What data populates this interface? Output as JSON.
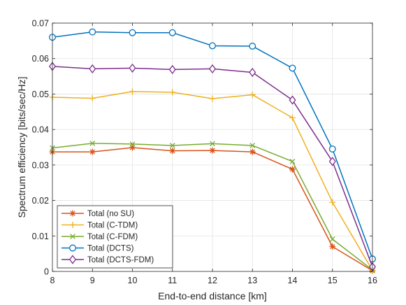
{
  "chart_data": {
    "type": "line",
    "title": "",
    "xlabel": "End-to-end distance [km]",
    "ylabel": "Spectrum efficiency [bits/sec/Hz]",
    "xlim": [
      8,
      16
    ],
    "ylim": [
      0,
      0.07
    ],
    "x": [
      8,
      9,
      10,
      11,
      12,
      13,
      14,
      15,
      16
    ],
    "xticks": [
      "8",
      "9",
      "10",
      "11",
      "12",
      "13",
      "14",
      "15",
      "16"
    ],
    "yticks": [
      "0",
      "0.01",
      "0.02",
      "0.03",
      "0.04",
      "0.05",
      "0.06",
      "0.07"
    ],
    "grid": true,
    "legend_position": "bottom-left",
    "series": [
      {
        "name": "Total (no SU)",
        "color": "#D95319",
        "marker": "asterisk",
        "values": [
          0.0337,
          0.0337,
          0.0349,
          0.034,
          0.0341,
          0.0337,
          0.0288,
          0.007,
          0.0002
        ]
      },
      {
        "name": "Total (C-TDM)",
        "color": "#EDB120",
        "marker": "plus",
        "values": [
          0.0491,
          0.0488,
          0.0507,
          0.0505,
          0.0487,
          0.0498,
          0.0433,
          0.0195,
          0.0003
        ]
      },
      {
        "name": "Total (C-FDM)",
        "color": "#77AC30",
        "marker": "x",
        "values": [
          0.0348,
          0.0361,
          0.0359,
          0.0355,
          0.036,
          0.0355,
          0.031,
          0.0091,
          0.0004
        ]
      },
      {
        "name": "Total (DCTS)",
        "color": "#0072BD",
        "marker": "circle",
        "values": [
          0.066,
          0.0675,
          0.0673,
          0.0673,
          0.0636,
          0.0635,
          0.0573,
          0.0345,
          0.0035
        ]
      },
      {
        "name": "Total (DCTS-FDM)",
        "color": "#7E2F8E",
        "marker": "diamond",
        "values": [
          0.0578,
          0.0571,
          0.0573,
          0.0569,
          0.0571,
          0.0561,
          0.0483,
          0.031,
          0.0013
        ]
      }
    ]
  }
}
